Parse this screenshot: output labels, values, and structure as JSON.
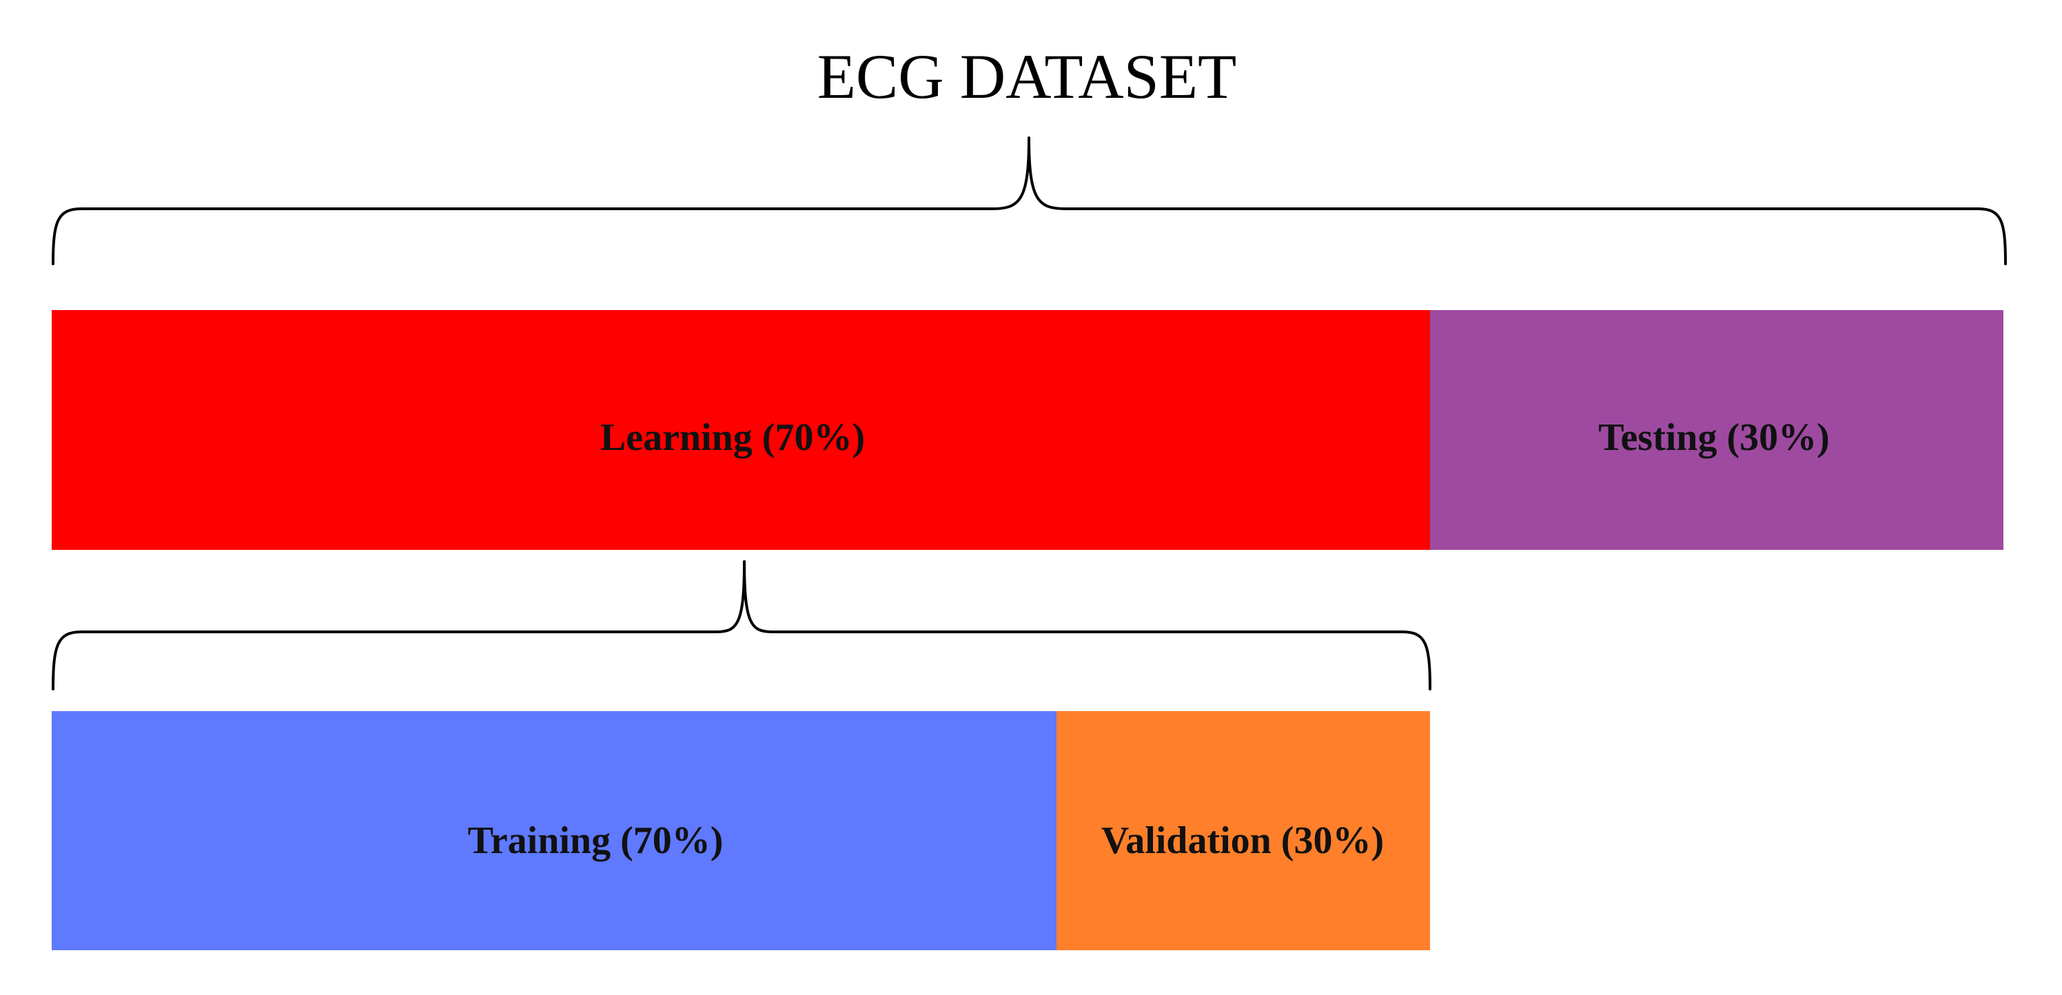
{
  "title": "ECG DATASET",
  "dataset_split": [
    {
      "label": "Learning (70%)",
      "percent": 70,
      "color": "#ff0000"
    },
    {
      "label": "Testing (30%)",
      "percent": 30,
      "color": "#9e4aa0"
    }
  ],
  "learning_split": [
    {
      "label": "Training (70%)",
      "percent": 70,
      "color": "#5f7aff"
    },
    {
      "label": "Validation (30%)",
      "percent": 30,
      "color": "#ff7f2a"
    }
  ]
}
